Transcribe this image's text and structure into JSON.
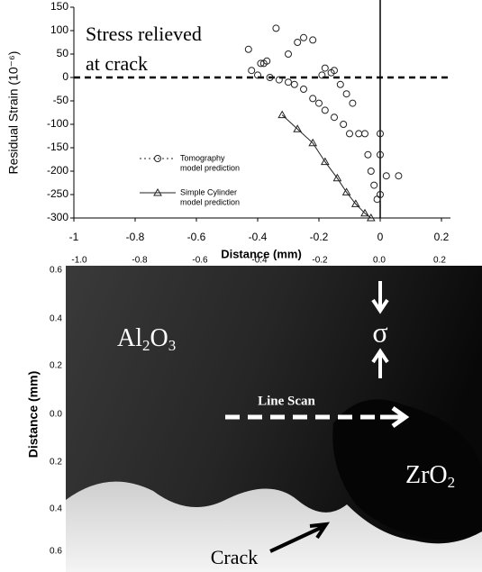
{
  "chart_data": {
    "type": "scatter",
    "annotation": [
      "Stress relieved",
      "at crack"
    ],
    "xlabel": "Distance (mm)",
    "ylabel": "Residual Strain (10⁻⁶)",
    "xlim": [
      -1,
      0.2
    ],
    "xticks": [
      -1,
      -0.8,
      -0.6,
      -0.4,
      -0.2,
      0,
      0.2
    ],
    "ylim": [
      -300,
      150
    ],
    "yticks": [
      -300,
      -250,
      -200,
      -150,
      -100,
      -50,
      0,
      50,
      100,
      150
    ],
    "hlines": [
      0
    ],
    "vlines": [
      0
    ],
    "series": [
      {
        "name": [
          "Tomography",
          "model prediction"
        ],
        "color": "#222",
        "marker": "circle",
        "connect": false,
        "dash": "2,3",
        "x": [
          -0.43,
          -0.42,
          -0.4,
          -0.39,
          -0.38,
          -0.37,
          -0.36,
          -0.34,
          -0.33,
          -0.3,
          -0.3,
          -0.28,
          -0.27,
          -0.25,
          -0.25,
          -0.22,
          -0.22,
          -0.2,
          -0.19,
          -0.18,
          -0.18,
          -0.16,
          -0.15,
          -0.15,
          -0.13,
          -0.12,
          -0.11,
          -0.1,
          -0.09,
          -0.07,
          -0.05,
          -0.04,
          -0.03,
          -0.02,
          -0.01,
          0.0,
          0.0,
          0.0,
          0.02,
          0.06
        ],
        "values": [
          60,
          15,
          5,
          30,
          30,
          35,
          0,
          105,
          -5,
          50,
          -10,
          -15,
          75,
          -25,
          85,
          80,
          -45,
          -55,
          5,
          20,
          -70,
          10,
          15,
          -85,
          -15,
          -100,
          -35,
          -120,
          -55,
          -120,
          -120,
          -165,
          -200,
          -230,
          -260,
          -250,
          -120,
          -165,
          -210,
          -210
        ]
      },
      {
        "name": [
          "Simple Cylinder",
          "model prediction"
        ],
        "color": "#222",
        "marker": "triangle",
        "connect": true,
        "dash": "none",
        "x": [
          -0.32,
          -0.27,
          -0.22,
          -0.18,
          -0.14,
          -0.11,
          -0.08,
          -0.05,
          -0.03
        ],
        "values": [
          -80,
          -110,
          -140,
          -180,
          -215,
          -245,
          -270,
          -290,
          -300
        ]
      }
    ]
  },
  "micrograph": {
    "x_ticks": [
      "-1.0",
      "-0.8",
      "-0.6",
      "-0.4",
      "-0.2",
      "0.0",
      "0.2"
    ],
    "y_ticks": [
      "0.6",
      "0.4",
      "0.2",
      "0.0",
      "0.2",
      "0.4",
      "0.6"
    ],
    "y_label": "Distance (mm)",
    "phase_left": [
      "Al",
      "2",
      "O",
      "3"
    ],
    "phase_right": [
      "ZrO",
      "2"
    ],
    "stress": "σ",
    "scan": "Line Scan",
    "crack": "Crack"
  }
}
